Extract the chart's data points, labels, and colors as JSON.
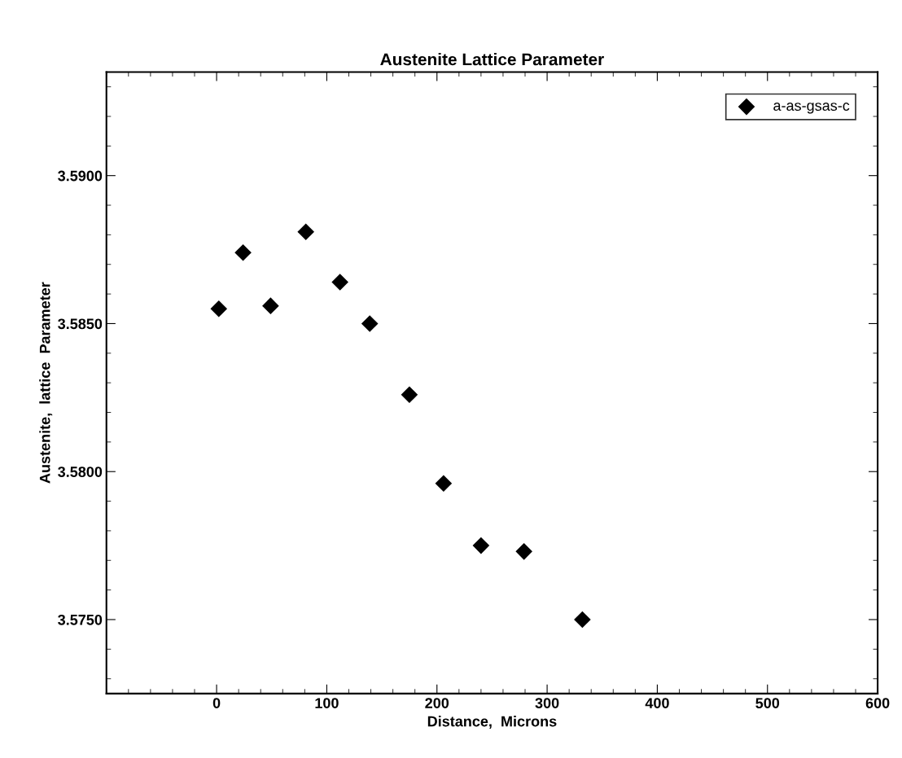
{
  "chart_data": {
    "type": "scatter",
    "title": "Austenite Lattice Parameter",
    "xlabel": "Distance,  Microns",
    "ylabel": "Austenite,  lattice  Parameter",
    "x": [
      2,
      24,
      49,
      81,
      112,
      139,
      175,
      206,
      240,
      279,
      332
    ],
    "series": [
      {
        "name": "a-as-gsas-c",
        "color": "#000000",
        "values": [
          3.5855,
          3.5874,
          3.5856,
          3.5881,
          3.5864,
          3.585,
          3.5826,
          3.5796,
          3.5775,
          3.5773,
          3.575
        ]
      }
    ],
    "xlim": [
      -100,
      600
    ],
    "xticks": [
      0,
      100,
      200,
      300,
      400,
      500,
      600
    ],
    "ylim": [
      3.5725,
      3.5935
    ],
    "yticks": [
      {
        "value": 3.575,
        "label": "3.5750"
      },
      {
        "value": 3.58,
        "label": "3.5800"
      },
      {
        "value": 3.585,
        "label": "3.5850"
      },
      {
        "value": 3.59,
        "label": "3.5900"
      }
    ],
    "marker": "diamond",
    "legend": "top right",
    "grid": false
  }
}
